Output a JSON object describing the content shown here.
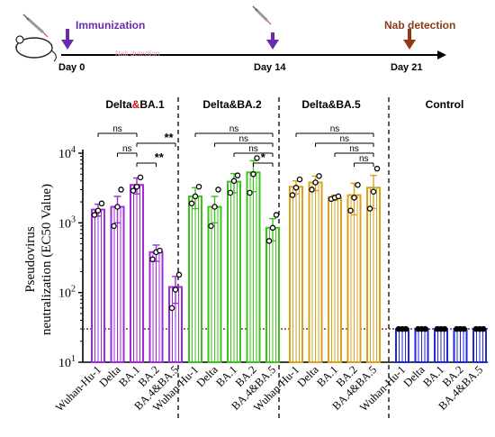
{
  "timeline": {
    "immunization_label": "Immunization",
    "nab_label": "Nab detection",
    "faint_text": "Nab detection",
    "days": [
      "Day 0",
      "Day 14",
      "Day 21"
    ],
    "colors": {
      "immunization": "#6a2bb0",
      "nab": "#8b3a1a",
      "faint": "#f0a0c0"
    }
  },
  "chart_data": {
    "type": "bar",
    "y_scale": "log",
    "ylim": [
      10,
      10000
    ],
    "ylabel_line1": "Pseudovirus",
    "ylabel_line2": "neutralization (EC50 Value)",
    "ytick_labels": [
      {
        "value": 10,
        "base": "10",
        "exp": "1"
      },
      {
        "value": 100,
        "base": "10",
        "exp": "2"
      },
      {
        "value": 1000,
        "base": "10",
        "exp": "3"
      },
      {
        "value": 10000,
        "base": "10",
        "exp": "4"
      }
    ],
    "detection_limit": 30,
    "groups": [
      {
        "title_parts": [
          {
            "text": "Delta",
            "color": "#000000"
          },
          {
            "text": "&",
            "color": "#d01010"
          },
          {
            "text": "BA.1",
            "color": "#000000"
          }
        ],
        "color": "#a12bd8",
        "categories": [
          "Wuhan-Hu-1",
          "Delta",
          "BA.1",
          "BA.2",
          "BA.4&BA.5"
        ],
        "values": [
          1550,
          1700,
          3500,
          380,
          120
        ],
        "sem": [
          300,
          700,
          900,
          100,
          50
        ],
        "points": [
          [
            1300,
            1500,
            1900
          ],
          [
            900,
            1700,
            3000
          ],
          [
            2900,
            3300,
            4500
          ],
          [
            300,
            380,
            400
          ],
          [
            60,
            110,
            180
          ]
        ],
        "comparisons": [
          {
            "from": 0,
            "to": 2,
            "label": "ns"
          },
          {
            "from": 2,
            "to": 4,
            "label": "**"
          },
          {
            "from": 1,
            "to": 2,
            "label": "ns"
          },
          {
            "from": 2,
            "to": 3,
            "label": "**"
          }
        ]
      },
      {
        "title_parts": [
          {
            "text": "Delta&BA.2",
            "color": "#000000"
          }
        ],
        "color": "#3fc21f",
        "categories": [
          "Wuhan-Hu-1",
          "Delta",
          "BA.1",
          "BA.2",
          "BA.4&BA.5"
        ],
        "values": [
          2400,
          1700,
          3900,
          5300,
          850
        ],
        "sem": [
          800,
          700,
          1200,
          2500,
          300
        ],
        "points": [
          [
            1900,
            2400,
            3300
          ],
          [
            900,
            1700,
            3000
          ],
          [
            2700,
            4000,
            4800
          ],
          [
            2700,
            5000,
            8500
          ],
          [
            550,
            850,
            1300
          ]
        ],
        "comparisons": [
          {
            "from": 0,
            "to": 4,
            "label": "ns"
          },
          {
            "from": 1,
            "to": 4,
            "label": "ns"
          },
          {
            "from": 2,
            "to": 4,
            "label": "ns"
          },
          {
            "from": 3,
            "to": 4,
            "label": "*"
          }
        ]
      },
      {
        "title_parts": [
          {
            "text": "Delta&BA.5",
            "color": "#000000"
          }
        ],
        "color": "#d9a21b",
        "categories": [
          "Wuhan-Hu-1",
          "Delta",
          "BA.1",
          "BA.2",
          "BA.4&BA.5"
        ],
        "values": [
          3300,
          3800,
          2300,
          2500,
          3200
        ],
        "sem": [
          700,
          900,
          200,
          1200,
          1600
        ],
        "points": [
          [
            2500,
            3200,
            4200
          ],
          [
            3000,
            3800,
            4700
          ],
          [
            2200,
            2300,
            2400
          ],
          [
            1500,
            2300,
            3500
          ],
          [
            1600,
            2800,
            6000
          ]
        ],
        "comparisons": [
          {
            "from": 0,
            "to": 4,
            "label": "ns"
          },
          {
            "from": 1,
            "to": 4,
            "label": "ns"
          },
          {
            "from": 2,
            "to": 4,
            "label": "ns"
          },
          {
            "from": 3,
            "to": 4,
            "label": "ns"
          }
        ]
      },
      {
        "title_parts": [
          {
            "text": "Control",
            "color": "#000000"
          }
        ],
        "color": "#1f2ad6",
        "categories": [
          "Wuhan-Hu-1",
          "Delta",
          "BA.1",
          "BA.2",
          "BA.4&BA.5"
        ],
        "values": [
          30,
          30,
          30,
          30,
          30
        ],
        "sem": [
          0,
          0,
          0,
          0,
          0
        ],
        "points": [
          [
            30,
            30,
            30
          ],
          [
            30,
            30,
            30
          ],
          [
            30,
            30,
            30
          ],
          [
            30,
            30,
            30
          ],
          [
            30,
            30,
            30
          ]
        ],
        "comparisons": []
      }
    ]
  }
}
